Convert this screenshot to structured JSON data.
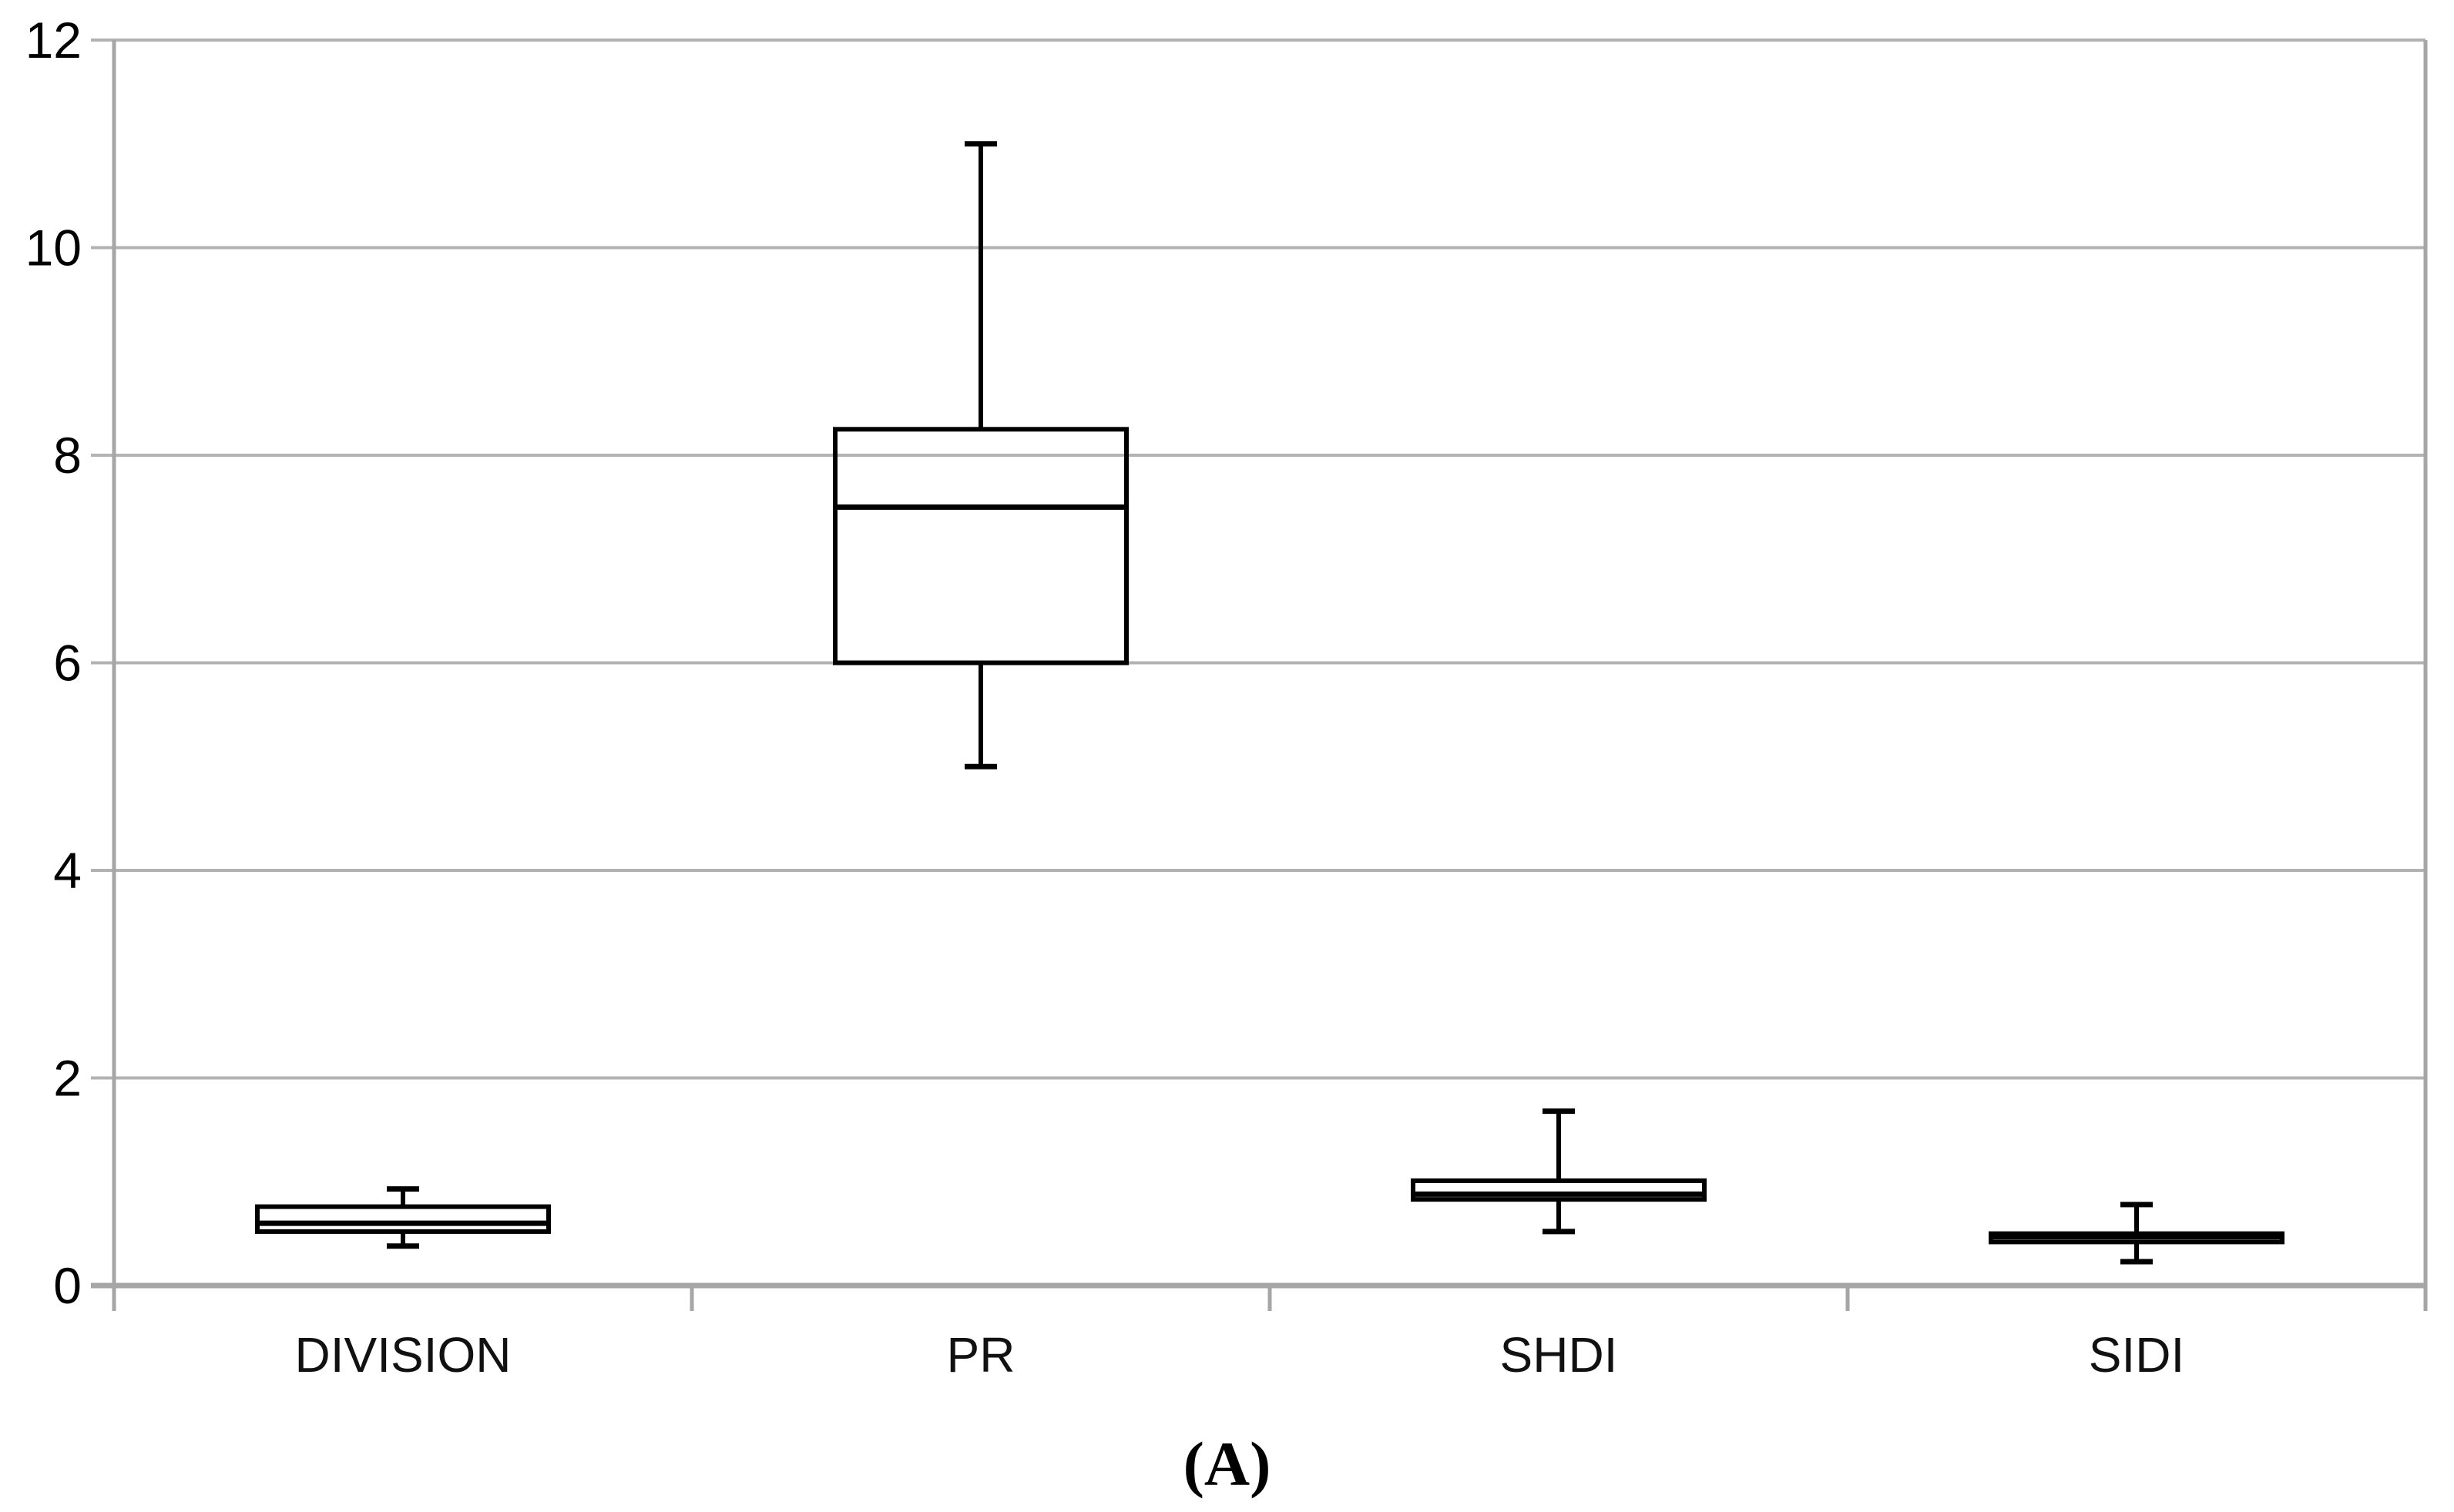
{
  "caption": "(A)",
  "chart_data": {
    "type": "boxplot",
    "title": "",
    "xlabel": "",
    "ylabel": "",
    "categories": [
      "DIVISION",
      "PR",
      "SHDI",
      "SIDI"
    ],
    "series": [
      {
        "name": "DIVISION",
        "min": 0.38,
        "q1": 0.52,
        "median": 0.6,
        "q3": 0.76,
        "max": 0.93
      },
      {
        "name": "PR",
        "min": 5.0,
        "q1": 6.0,
        "median": 7.5,
        "q3": 8.25,
        "max": 11.0
      },
      {
        "name": "SHDI",
        "min": 0.52,
        "q1": 0.83,
        "median": 0.88,
        "q3": 1.01,
        "max": 1.68
      },
      {
        "name": "SIDI",
        "min": 0.23,
        "q1": 0.42,
        "median": 0.47,
        "q3": 0.5,
        "max": 0.78
      }
    ],
    "ylim": [
      0,
      12
    ],
    "yticks": [
      0,
      2,
      4,
      6,
      8,
      10,
      12
    ],
    "grid": true,
    "legend_position": "none",
    "colors": {
      "gridline": "#b2b2b2",
      "axis_line": "#a6a6a6",
      "box_stroke": "#000000",
      "box_fill": "none",
      "tick_label": "#000000",
      "category_label": "#111111",
      "background": "#ffffff"
    }
  }
}
